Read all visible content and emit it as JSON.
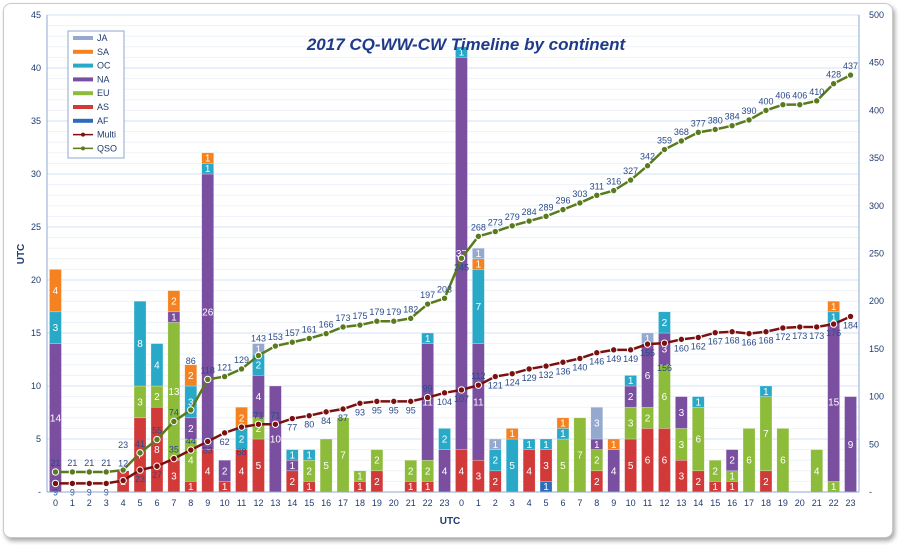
{
  "chart_data": {
    "type": "bar",
    "title": "2017 CQ-WW-CW Timeline by continent",
    "xlabel": "UTC",
    "ylabel": "UTC",
    "ylim": [
      0,
      45
    ],
    "y2lim": [
      0,
      500
    ],
    "yticks": [
      "-",
      "5",
      "10",
      "15",
      "20",
      "25",
      "30",
      "35",
      "40",
      "45"
    ],
    "y2ticks": [
      "-",
      "50",
      "100",
      "150",
      "200",
      "250",
      "300",
      "350",
      "400",
      "450",
      "500"
    ],
    "grid": true,
    "legend_position": "top-left",
    "categories": [
      "0",
      "1",
      "2",
      "3",
      "4",
      "5",
      "6",
      "7",
      "8",
      "9",
      "10",
      "11",
      "12",
      "13",
      "14",
      "15",
      "16",
      "17",
      "18",
      "19",
      "20",
      "21",
      "22",
      "23",
      "0",
      "1",
      "2",
      "3",
      "4",
      "5",
      "6",
      "7",
      "8",
      "9",
      "10",
      "11",
      "12",
      "13",
      "14",
      "15",
      "16",
      "17",
      "18",
      "19",
      "20",
      "21",
      "22",
      "23"
    ],
    "series": [
      {
        "name": "AF",
        "kind": "bar",
        "color": "#2e6bbf",
        "values": [
          0,
          0,
          0,
          0,
          0,
          0,
          0,
          0,
          0,
          0,
          0,
          0,
          0,
          0,
          0,
          0,
          0,
          0,
          0,
          0,
          0,
          0,
          0,
          0,
          0,
          0,
          0,
          0,
          0,
          1,
          0,
          0,
          0,
          0,
          0,
          0,
          0,
          0,
          0,
          0,
          0,
          0,
          0,
          0,
          0,
          0,
          0,
          0
        ]
      },
      {
        "name": "AS",
        "kind": "bar",
        "color": "#d23a3a",
        "values": [
          0,
          0,
          0,
          0,
          2,
          7,
          8,
          3,
          1,
          4,
          1,
          4,
          5,
          0,
          2,
          1,
          0,
          0,
          1,
          2,
          0,
          1,
          1,
          0,
          4,
          3,
          2,
          0,
          4,
          3,
          0,
          0,
          2,
          0,
          5,
          6,
          6,
          3,
          2,
          1,
          1,
          0,
          2,
          0,
          0,
          0,
          0,
          0
        ]
      },
      {
        "name": "EU",
        "kind": "bar",
        "color": "#8dbb3a",
        "values": [
          0,
          0,
          0,
          0,
          0,
          3,
          2,
          13,
          4,
          0,
          0,
          0,
          2,
          0,
          0,
          2,
          5,
          7,
          1,
          2,
          0,
          2,
          2,
          0,
          0,
          0,
          0,
          0,
          0,
          0,
          5,
          7,
          2,
          0,
          3,
          2,
          6,
          3,
          6,
          2,
          1,
          6,
          7,
          6,
          0,
          4,
          1,
          0
        ]
      },
      {
        "name": "NA",
        "kind": "bar",
        "color": "#7a4f9f",
        "values": [
          14,
          0,
          0,
          0,
          0,
          0,
          0,
          1,
          2,
          26,
          2,
          0,
          4,
          10,
          1,
          0,
          0,
          0,
          0,
          0,
          0,
          0,
          11,
          4,
          37,
          11,
          0,
          0,
          0,
          0,
          0,
          0,
          1,
          4,
          2,
          6,
          3,
          3,
          0,
          0,
          2,
          0,
          0,
          0,
          0,
          0,
          15,
          9
        ]
      },
      {
        "name": "OC",
        "kind": "bar",
        "color": "#28a9c8",
        "values": [
          3,
          0,
          0,
          0,
          0,
          8,
          4,
          0,
          3,
          1,
          0,
          2,
          2,
          0,
          1,
          1,
          0,
          0,
          0,
          0,
          0,
          0,
          1,
          2,
          1,
          7,
          2,
          5,
          1,
          1,
          1,
          0,
          0,
          0,
          1,
          0,
          2,
          0,
          1,
          0,
          0,
          0,
          1,
          0,
          0,
          0,
          1,
          0
        ]
      },
      {
        "name": "SA",
        "kind": "bar",
        "color": "#f58220",
        "values": [
          4,
          0,
          0,
          0,
          0,
          0,
          0,
          2,
          2,
          1,
          0,
          2,
          0,
          0,
          0,
          0,
          0,
          0,
          0,
          0,
          0,
          0,
          0,
          0,
          0,
          1,
          0,
          1,
          0,
          0,
          1,
          0,
          0,
          1,
          0,
          0,
          0,
          0,
          0,
          0,
          0,
          0,
          0,
          0,
          0,
          0,
          1,
          0
        ]
      },
      {
        "name": "JA",
        "kind": "bar",
        "color": "#95a9cf",
        "values": [
          0,
          0,
          0,
          0,
          0,
          0,
          0,
          0,
          0,
          0,
          0,
          0,
          1,
          0,
          0,
          0,
          0,
          0,
          0,
          0,
          0,
          0,
          0,
          0,
          0,
          1,
          1,
          0,
          0,
          0,
          0,
          0,
          3,
          0,
          0,
          1,
          0,
          0,
          0,
          0,
          0,
          0,
          0,
          0,
          0,
          0,
          0,
          0
        ]
      },
      {
        "name": "Multi",
        "kind": "line",
        "axis": "right",
        "color": "#7b1010",
        "values": [
          9,
          9,
          9,
          9,
          12,
          23,
          27,
          35,
          44,
          53,
          62,
          68,
          71,
          71,
          77,
          80,
          84,
          87,
          93,
          95,
          95,
          95,
          99,
          104,
          107,
          112,
          121,
          124,
          129,
          132,
          136,
          140,
          146,
          149,
          149,
          155,
          156,
          160,
          162,
          167,
          168,
          166,
          168,
          172,
          173,
          173,
          176,
          184
        ]
      },
      {
        "name": "QSO",
        "kind": "line",
        "axis": "right",
        "color": "#5a7a1e",
        "values": [
          21,
          21,
          21,
          21,
          23,
          41,
          55,
          74,
          86,
          118,
          121,
          129,
          143,
          153,
          157,
          161,
          166,
          173,
          175,
          179,
          179,
          182,
          197,
          203,
          245,
          268,
          273,
          279,
          284,
          289,
          296,
          303,
          311,
          316,
          327,
          342,
          359,
          368,
          377,
          380,
          384,
          390,
          400,
          406,
          406,
          410,
          428,
          437
        ]
      }
    ]
  }
}
